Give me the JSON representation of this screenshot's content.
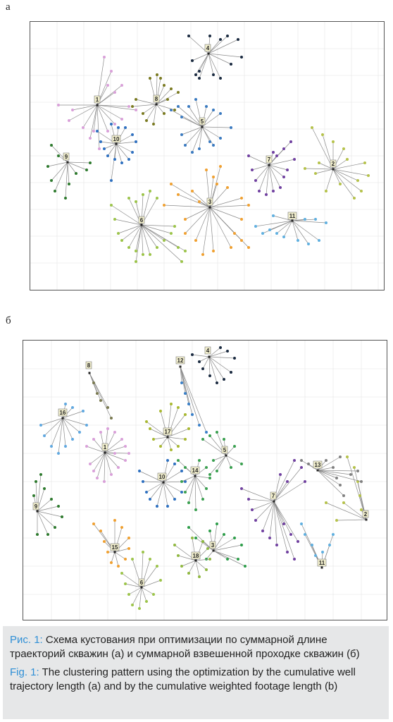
{
  "panel_a": {
    "letter": "а"
  },
  "panel_b": {
    "letter": "б"
  },
  "caption": {
    "ru_label": "Рис. 1:",
    "ru_text": " Схема кустования при оптимизации по суммарной длине траекторий скважин (а) и суммарной взвешенной проходке скважин (б)",
    "en_label": "Fig. 1:",
    "en_text": " The clustering pattern using the optimization by the cumulative well trajectory length (a) and by the cumulative weighted footage length (b)"
  },
  "chart_data": [
    {
      "type": "scatter",
      "panel": "а",
      "clusters": [
        {
          "label": "1",
          "color": "#d9a0d9"
        },
        {
          "label": "2",
          "color": "#b5c24a"
        },
        {
          "label": "3",
          "color": "#f0a030"
        },
        {
          "label": "4",
          "color": "#1a2a40"
        },
        {
          "label": "5",
          "color": "#3a7ac0"
        },
        {
          "label": "6",
          "color": "#9cc44a"
        },
        {
          "label": "7",
          "color": "#7040a0"
        },
        {
          "label": "8",
          "color": "#7a7a20"
        },
        {
          "label": "9",
          "color": "#2e7a2e"
        },
        {
          "label": "10",
          "color": "#2e70c0"
        },
        {
          "label": "11",
          "color": "#60b0e0"
        }
      ]
    },
    {
      "type": "scatter",
      "panel": "б",
      "clusters": [
        {
          "label": "1",
          "color": "#d9a0d9"
        },
        {
          "label": "2",
          "color": "#b5c24a"
        },
        {
          "label": "3",
          "color": "#2e9e4a"
        },
        {
          "label": "4",
          "color": "#1a2a40"
        },
        {
          "label": "5",
          "color": "#3aa050"
        },
        {
          "label": "6",
          "color": "#9cc44a"
        },
        {
          "label": "7",
          "color": "#7040a0"
        },
        {
          "label": "8",
          "color": "#7a7a50"
        },
        {
          "label": "9",
          "color": "#2e7a2e"
        },
        {
          "label": "10",
          "color": "#2e70c0"
        },
        {
          "label": "11",
          "color": "#60b0e0"
        },
        {
          "label": "12",
          "color": "#3a80c8"
        },
        {
          "label": "13",
          "color": "#808080"
        },
        {
          "label": "14",
          "color": "#3aa050"
        },
        {
          "label": "15",
          "color": "#f0a030"
        },
        {
          "label": "16",
          "color": "#60a8e0"
        },
        {
          "label": "17",
          "color": "#a8b830"
        },
        {
          "label": "18",
          "color": "#90b840"
        }
      ]
    }
  ]
}
